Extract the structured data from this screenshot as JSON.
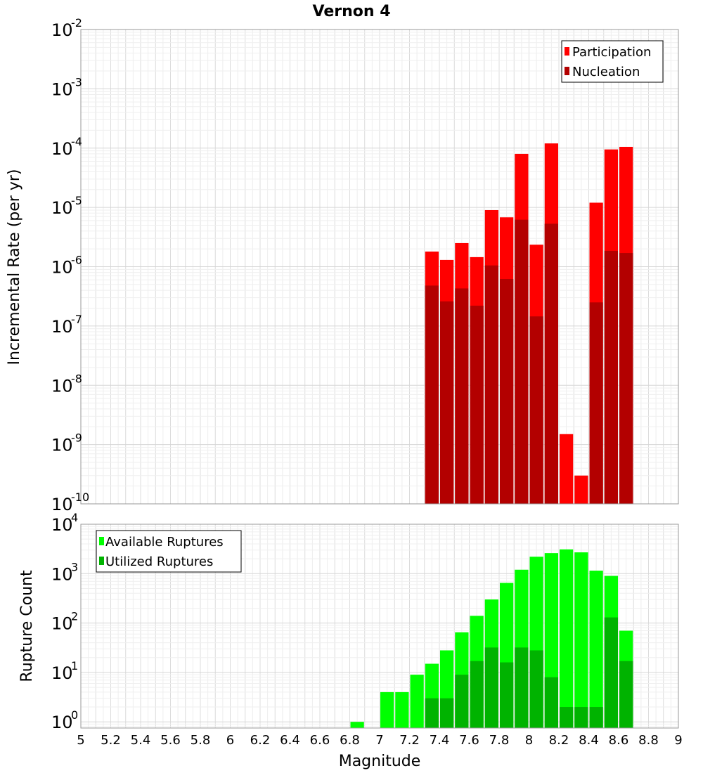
{
  "chart_data": [
    {
      "type": "bar",
      "title": "Vernon 4",
      "xlabel": "",
      "ylabel": "Incremental Rate (per yr)",
      "y_scale": "log",
      "ylim": [
        1e-10,
        0.01
      ],
      "xlim": [
        5,
        9
      ],
      "y_ticks": [
        {
          "base": "10",
          "exp": "-10"
        },
        {
          "base": "10",
          "exp": "-9"
        },
        {
          "base": "10",
          "exp": "-8"
        },
        {
          "base": "10",
          "exp": "-7"
        },
        {
          "base": "10",
          "exp": "-6"
        },
        {
          "base": "10",
          "exp": "-5"
        },
        {
          "base": "10",
          "exp": "-4"
        },
        {
          "base": "10",
          "exp": "-3"
        },
        {
          "base": "10",
          "exp": "-2"
        }
      ],
      "x": [
        7.35,
        7.45,
        7.55,
        7.65,
        7.75,
        7.85,
        7.95,
        8.05,
        8.15,
        8.25,
        8.35,
        8.45,
        8.55,
        8.65
      ],
      "series": [
        {
          "name": "Participation",
          "color": "#ff0000",
          "values": [
            1.8e-06,
            1.3e-06,
            2.5e-06,
            1.45e-06,
            9e-06,
            6.8e-06,
            8e-05,
            2.35e-06,
            0.00012,
            1.5e-09,
            3e-10,
            1.2e-05,
            9.5e-05,
            0.000105
          ]
        },
        {
          "name": "Nucleation",
          "color": "#b30000",
          "values": [
            4.8e-07,
            2.6e-07,
            4.3e-07,
            2.2e-07,
            1.05e-06,
            6.2e-07,
            6.2e-06,
            1.45e-07,
            5.3e-06,
            null,
            null,
            2.5e-07,
            1.85e-06,
            1.7e-06
          ]
        }
      ],
      "legend": "top-right",
      "grid": true
    },
    {
      "type": "bar",
      "title": "",
      "xlabel": "Magnitude",
      "ylabel": "Rupture Count",
      "y_scale": "log",
      "ylim": [
        0.75,
        10000.0
      ],
      "xlim": [
        5,
        9
      ],
      "y_ticks": [
        {
          "base": "10",
          "exp": "0"
        },
        {
          "base": "10",
          "exp": "1"
        },
        {
          "base": "10",
          "exp": "2"
        },
        {
          "base": "10",
          "exp": "3"
        },
        {
          "base": "10",
          "exp": "4"
        }
      ],
      "x_tick_labels": [
        "5",
        "5.2",
        "5.4",
        "5.6",
        "5.8",
        "6",
        "6.2",
        "6.4",
        "6.6",
        "6.8",
        "7",
        "7.2",
        "7.4",
        "7.6",
        "7.8",
        "8",
        "8.2",
        "8.4",
        "8.6",
        "8.8",
        "9"
      ],
      "x": [
        6.85,
        7.05,
        7.15,
        7.25,
        7.35,
        7.45,
        7.55,
        7.65,
        7.75,
        7.85,
        7.95,
        8.05,
        8.15,
        8.25,
        8.35,
        8.45,
        8.55,
        8.65
      ],
      "series": [
        {
          "name": "Available Ruptures",
          "color": "#00ff00",
          "values": [
            1,
            4,
            4,
            9,
            15,
            28,
            65,
            140,
            300,
            650,
            1200,
            2200,
            2600,
            3100,
            2700,
            1150,
            900,
            70
          ]
        },
        {
          "name": "Utilized Ruptures",
          "color": "#00b300",
          "values": [
            null,
            null,
            null,
            null,
            3,
            3,
            9,
            17,
            32,
            16,
            32,
            28,
            8,
            2,
            2,
            2,
            130,
            17
          ]
        }
      ],
      "legend": "top-left",
      "grid": true
    }
  ]
}
